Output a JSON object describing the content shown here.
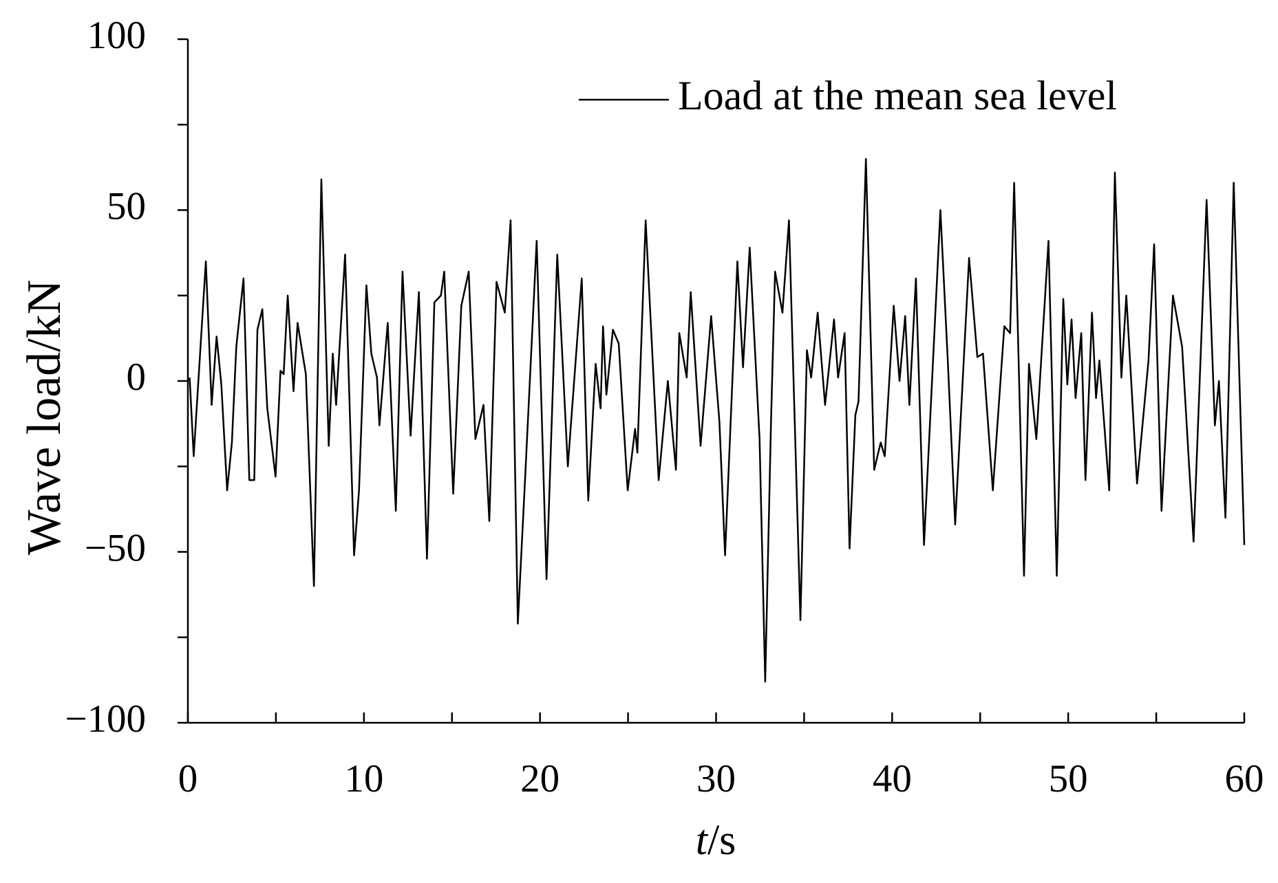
{
  "chart_data": {
    "type": "line",
    "x_label": {
      "variable": "t",
      "unit": "/s"
    },
    "y_label": "Wave load/kN",
    "series": [
      {
        "name": "Load at the mean sea level",
        "color": "#000000",
        "x": [
          0.1,
          0.33,
          1.02,
          1.35,
          1.63,
          1.9,
          2.23,
          2.5,
          2.75,
          3.16,
          3.49,
          3.77,
          3.95,
          4.23,
          4.51,
          4.98,
          5.26,
          5.44,
          5.67,
          6.0,
          6.23,
          6.7,
          7.16,
          7.58,
          8.0,
          8.23,
          8.42,
          8.93,
          9.44,
          9.72,
          10.14,
          10.42,
          10.74,
          10.88,
          11.35,
          11.81,
          12.19,
          12.65,
          13.12,
          13.58,
          14.0,
          14.37,
          14.56,
          15.07,
          15.53,
          15.95,
          16.33,
          16.79,
          17.12,
          17.53,
          18.0,
          18.33,
          18.74,
          19.12,
          19.81,
          20.37,
          20.98,
          21.58,
          22.37,
          22.74,
          23.16,
          23.44,
          23.58,
          23.77,
          24.14,
          24.47,
          24.98,
          25.4,
          25.53,
          26.0,
          26.74,
          27.26,
          27.72,
          27.91,
          28.33,
          28.56,
          29.12,
          29.72,
          30.19,
          30.51,
          31.21,
          31.53,
          31.91,
          32.47,
          32.79,
          33.12,
          33.35,
          33.77,
          34.14,
          34.79,
          35.16,
          35.4,
          35.77,
          36.19,
          36.7,
          36.93,
          37.3,
          37.58,
          37.91,
          38.09,
          38.51,
          38.98,
          39.35,
          39.58,
          40.09,
          40.42,
          40.74,
          40.98,
          41.35,
          41.81,
          42.74,
          43.16,
          43.58,
          44.37,
          44.84,
          45.16,
          45.72,
          46.37,
          46.7,
          46.93,
          47.49,
          47.77,
          48.19,
          48.88,
          49.35,
          49.72,
          49.95,
          50.19,
          50.42,
          50.74,
          50.98,
          51.35,
          51.58,
          51.77,
          52.33,
          52.65,
          53.02,
          53.3,
          53.91,
          54.56,
          54.88,
          55.3,
          55.95,
          56.47,
          57.12,
          57.86,
          58.33,
          58.56,
          58.93,
          59.4,
          60.0
        ],
        "values": [
          1,
          -22,
          35,
          -7,
          13,
          -1,
          -32,
          -18,
          10,
          30,
          -29,
          -29,
          15,
          21,
          -8,
          -28,
          3,
          2,
          25,
          -3,
          17,
          2,
          -60,
          59,
          -19,
          8,
          -7,
          37,
          -51,
          -32,
          28,
          8,
          1,
          -13,
          17,
          -38,
          32,
          -16,
          26,
          -52,
          23,
          25,
          32,
          -33,
          22,
          32,
          -17,
          -7,
          -41,
          29,
          20,
          47,
          -71,
          -32,
          41,
          -58,
          37,
          -25,
          30,
          -35,
          5,
          -8,
          16,
          -4,
          15,
          11,
          -32,
          -14,
          -21,
          47,
          -29,
          0,
          -26,
          14,
          1,
          26,
          -19,
          19,
          -12,
          -51,
          35,
          4,
          39,
          -17,
          -88,
          -12,
          32,
          20,
          47,
          -70,
          9,
          1,
          20,
          -7,
          18,
          1,
          14,
          -49,
          -10,
          -6,
          65,
          -26,
          -18,
          -22,
          22,
          0,
          19,
          -7,
          30,
          -48,
          50,
          6,
          -42,
          36,
          7,
          8,
          -32,
          16,
          14,
          58,
          -57,
          5,
          -17,
          41,
          -57,
          24,
          -1,
          18,
          -5,
          14,
          -29,
          20,
          -5,
          6,
          -32,
          61,
          1,
          25,
          -30,
          6,
          40,
          -38,
          25,
          10,
          -47,
          53,
          -13,
          0,
          -40,
          58,
          -48
        ]
      }
    ],
    "xlim": [
      0,
      60
    ],
    "xticks": [
      0,
      10,
      20,
      30,
      40,
      50,
      60
    ],
    "xminorticks": [
      5,
      15,
      25,
      35,
      45,
      55
    ],
    "ylim": [
      -100,
      100
    ],
    "yticks": [
      {
        "value": -100,
        "label": "−100"
      },
      {
        "value": -50,
        "label": "−50"
      },
      0,
      50,
      100
    ],
    "yminorticks": [
      -75,
      -25,
      25,
      75
    ],
    "grid": false
  }
}
